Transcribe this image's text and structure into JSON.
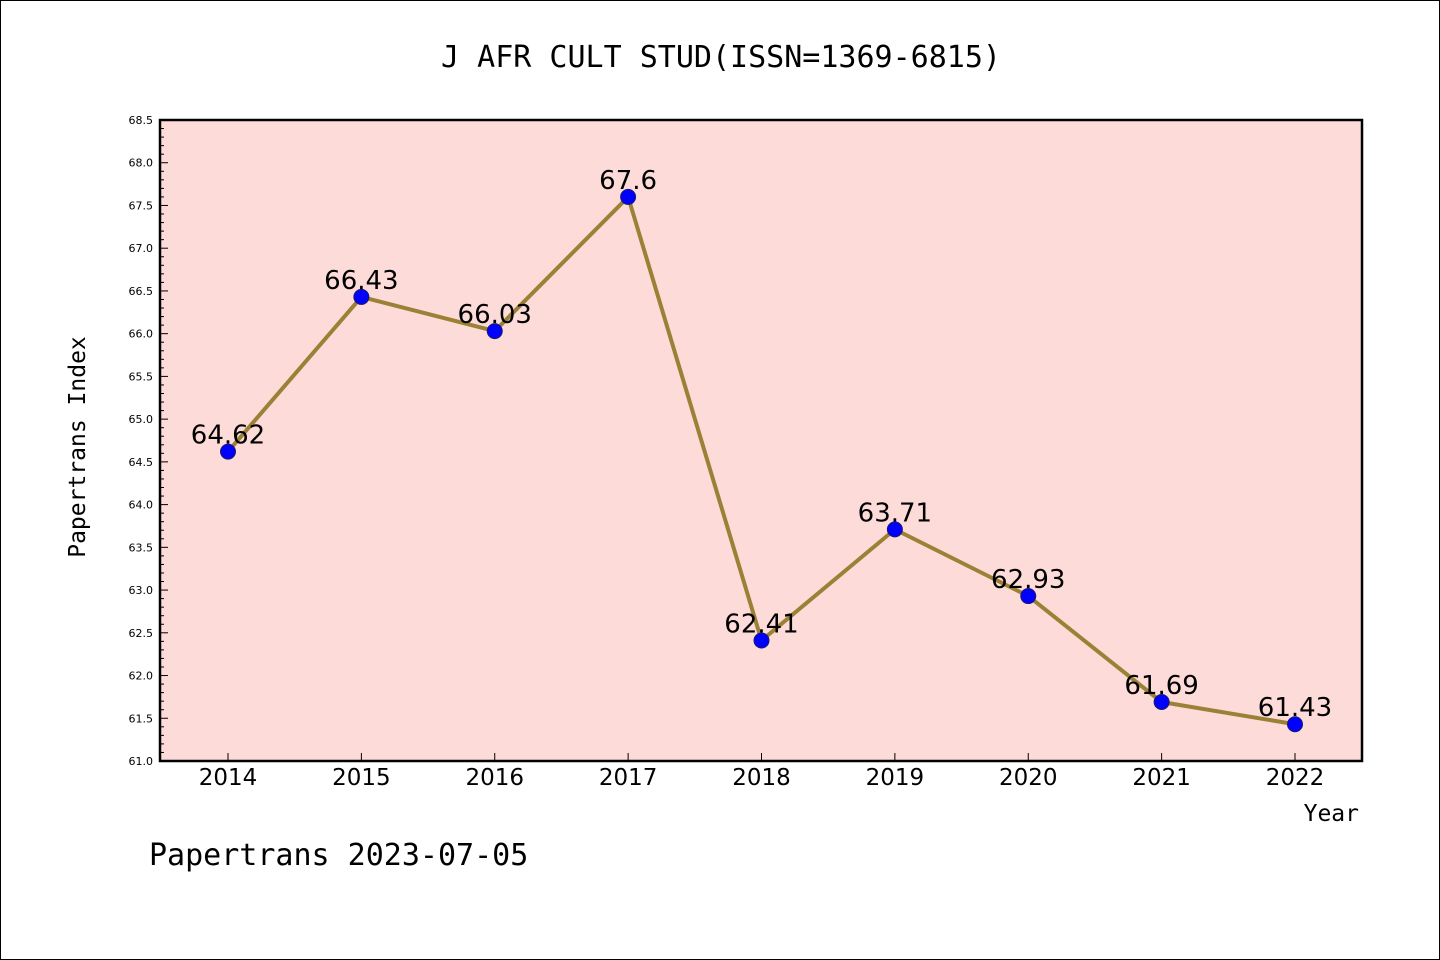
{
  "chart_data": {
    "type": "line",
    "title": "J AFR CULT STUD(ISSN=1369-6815)",
    "xlabel": "Year",
    "ylabel": "Papertrans Index",
    "categories": [
      "2014",
      "2015",
      "2016",
      "2017",
      "2018",
      "2019",
      "2020",
      "2021",
      "2022"
    ],
    "series": [
      {
        "values": [
          64.62,
          66.43,
          66.03,
          67.6,
          62.41,
          63.71,
          62.93,
          61.69,
          61.43
        ],
        "labels": [
          "64.62",
          "66.43",
          "66.03",
          "67.6",
          "62.41",
          "63.71",
          "62.93",
          "61.69",
          "61.43"
        ]
      }
    ],
    "ylim": [
      61.0,
      68.5
    ],
    "yticks": [
      "61.0",
      "61.5",
      "62.0",
      "62.5",
      "63.0",
      "63.5",
      "64.0",
      "64.5",
      "65.0",
      "65.5",
      "66.0",
      "66.5",
      "67.0",
      "67.5",
      "68.0",
      "68.5"
    ],
    "grid": false,
    "colors": {
      "plot_background": "#fddbd8",
      "line": "#9b8136",
      "marker": "#0000ff",
      "marker_edge": "#1a1a6e"
    }
  },
  "footer": "Papertrans 2023-07-05"
}
